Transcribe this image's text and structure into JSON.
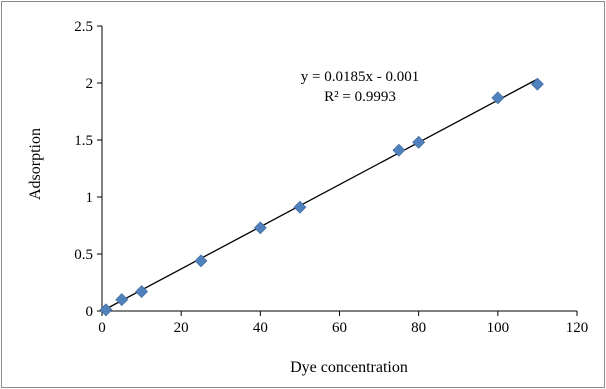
{
  "chart_data": {
    "type": "scatter",
    "xlabel": "Dye concentration",
    "ylabel": "Adsorption",
    "xlim": [
      0,
      120
    ],
    "ylim": [
      0,
      2.5
    ],
    "xticks": [
      "0",
      "20",
      "40",
      "60",
      "80",
      "100",
      "120"
    ],
    "yticks": [
      "0",
      "0.5",
      "1",
      "1.5",
      "2",
      "2.5"
    ],
    "grid": false,
    "legend": "none",
    "series": [
      {
        "marker": "diamond",
        "color": "#4f81bd",
        "x": [
          1,
          5,
          10,
          25,
          40,
          50,
          75,
          80,
          100,
          110
        ],
        "y": [
          0.01,
          0.1,
          0.17,
          0.44,
          0.73,
          0.91,
          1.41,
          1.48,
          1.87,
          1.99
        ]
      }
    ],
    "trendline": {
      "type": "linear",
      "slope": 0.0185,
      "intercept": -0.001,
      "x_range": [
        1,
        110
      ],
      "color": "#000000",
      "equation": "y = 0.0185x - 0.001",
      "r_squared": "R² = 0.9993"
    }
  }
}
